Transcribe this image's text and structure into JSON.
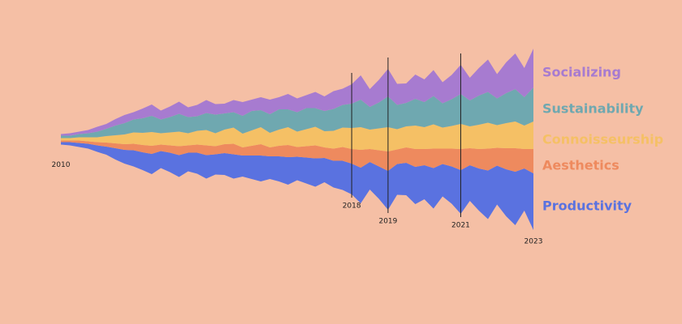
{
  "chart_data": {
    "type": "stream",
    "categories": [
      "2010",
      null,
      null,
      null,
      null,
      null,
      null,
      null,
      null,
      null,
      null,
      null,
      null,
      null,
      null,
      null,
      null,
      null,
      null,
      null,
      null,
      null,
      null,
      null,
      null,
      null,
      null,
      null,
      null,
      null,
      null,
      null,
      "2018",
      null,
      null,
      null,
      "2019",
      null,
      null,
      null,
      null,
      null,
      null,
      null,
      "2021",
      null,
      null,
      null,
      null,
      null,
      null,
      null,
      "2023"
    ],
    "series": [
      {
        "name": "Socializing",
        "color": "#a77bd0",
        "values": [
          2,
          3,
          3,
          4,
          6,
          6,
          8,
          10,
          9,
          12,
          14,
          11,
          13,
          15,
          12,
          14,
          16,
          13,
          12,
          15,
          17,
          14,
          16,
          18,
          15,
          19,
          17,
          16,
          20,
          18,
          22,
          20,
          24,
          30,
          22,
          28,
          34,
          26,
          24,
          30,
          28,
          32,
          26,
          30,
          36,
          28,
          34,
          40,
          30,
          38,
          44,
          36,
          48
        ]
      },
      {
        "name": "Sustainability",
        "color": "#6fa8b0",
        "values": [
          3,
          3,
          4,
          5,
          7,
          9,
          12,
          14,
          16,
          18,
          20,
          17,
          19,
          22,
          20,
          18,
          21,
          23,
          20,
          19,
          22,
          24,
          21,
          23,
          25,
          22,
          24,
          26,
          23,
          25,
          27,
          28,
          30,
          34,
          28,
          32,
          38,
          30,
          29,
          33,
          31,
          35,
          30,
          33,
          37,
          32,
          36,
          38,
          33,
          37,
          40,
          35,
          42
        ]
      },
      {
        "name": "Connoisseurship",
        "color": "#f5c065",
        "values": [
          3,
          3,
          4,
          5,
          6,
          8,
          10,
          12,
          14,
          15,
          17,
          14,
          16,
          18,
          15,
          17,
          19,
          16,
          18,
          20,
          17,
          19,
          21,
          18,
          20,
          22,
          19,
          21,
          23,
          20,
          22,
          24,
          26,
          28,
          24,
          27,
          30,
          25,
          26,
          29,
          27,
          30,
          26,
          28,
          31,
          27,
          30,
          32,
          28,
          31,
          33,
          29,
          34
        ]
      },
      {
        "name": "Aesthetics",
        "color": "#ee8a5e",
        "values": [
          2,
          2,
          3,
          3,
          4,
          5,
          6,
          7,
          8,
          9,
          10,
          8,
          9,
          11,
          9,
          10,
          12,
          10,
          11,
          13,
          10,
          12,
          14,
          11,
          13,
          15,
          12,
          14,
          16,
          13,
          15,
          17,
          18,
          22,
          16,
          20,
          24,
          18,
          19,
          22,
          20,
          24,
          19,
          22,
          26,
          21,
          24,
          27,
          22,
          26,
          29,
          24,
          30
        ]
      },
      {
        "name": "Productivity",
        "color": "#5a72e0",
        "values": [
          3,
          4,
          5,
          6,
          8,
          10,
          14,
          17,
          20,
          22,
          25,
          21,
          24,
          27,
          23,
          26,
          29,
          25,
          27,
          30,
          26,
          29,
          32,
          28,
          31,
          34,
          29,
          32,
          35,
          30,
          33,
          36,
          38,
          44,
          34,
          40,
          48,
          38,
          40,
          46,
          42,
          50,
          40,
          46,
          54,
          44,
          52,
          60,
          48,
          58,
          66,
          52,
          70
        ]
      }
    ]
  }
}
